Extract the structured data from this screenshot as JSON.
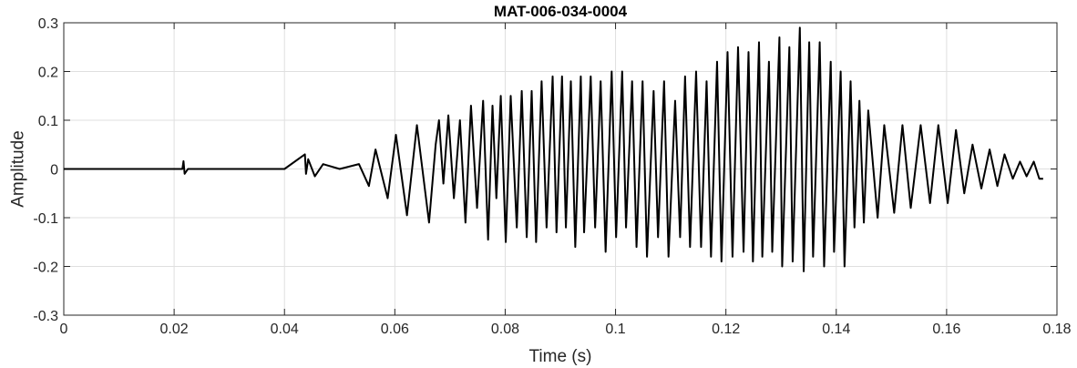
{
  "chart_data": {
    "type": "line",
    "title": "MAT-006-034-0004",
    "xlabel": "Time (s)",
    "ylabel": "Amplitude",
    "xlim": [
      0,
      0.18
    ],
    "ylim": [
      -0.3,
      0.3
    ],
    "grid": true,
    "x_ticks": [
      0,
      0.02,
      0.04,
      0.06,
      0.08,
      0.1,
      0.12,
      0.14,
      0.16,
      0.18
    ],
    "x_tick_labels": [
      "0",
      "0.02",
      "0.04",
      "0.06",
      "0.08",
      "0.1",
      "0.12",
      "0.14",
      "0.16",
      "0.18"
    ],
    "y_ticks": [
      -0.3,
      -0.2,
      -0.1,
      0,
      0.1,
      0.2,
      0.3
    ],
    "y_tick_labels": [
      "-0.3",
      "-0.2",
      "-0.1",
      "0",
      "0.1",
      "0.2",
      "0.3"
    ],
    "series": [
      {
        "color": "#000000",
        "x": [
          0,
          0.0215,
          0.0217,
          0.0219,
          0.0225,
          0.03,
          0.04,
          0.0437,
          0.0439,
          0.0443,
          0.0455,
          0.047,
          0.05,
          0.0535,
          0.0553,
          0.0565,
          0.0587,
          0.0602,
          0.0622,
          0.064,
          0.0662,
          0.0674,
          0.068,
          0.0688,
          0.0697,
          0.0707,
          0.0718,
          0.0728,
          0.0738,
          0.0749,
          0.076,
          0.0769,
          0.0777,
          0.0784,
          0.0792,
          0.0801,
          0.081,
          0.0821,
          0.083,
          0.0839,
          0.0848,
          0.0856,
          0.0866,
          0.0875,
          0.0886,
          0.0893,
          0.0903,
          0.091,
          0.0919,
          0.0927,
          0.0937,
          0.0943,
          0.0955,
          0.0963,
          0.0973,
          0.0982,
          0.0993,
          0.1001,
          0.1012,
          0.1019,
          0.103,
          0.1038,
          0.1049,
          0.1057,
          0.1069,
          0.1077,
          0.1088,
          0.1096,
          0.1108,
          0.1117,
          0.1126,
          0.1135,
          0.1146,
          0.1155,
          0.1165,
          0.1173,
          0.1184,
          0.1192,
          0.1203,
          0.1212,
          0.1222,
          0.1232,
          0.1241,
          0.1249,
          0.126,
          0.1266,
          0.1278,
          0.1284,
          0.1297,
          0.1302,
          0.1315,
          0.1321,
          0.1334,
          0.1341,
          0.1351,
          0.1358,
          0.137,
          0.1378,
          0.139,
          0.1396,
          0.1408,
          0.1415,
          0.1426,
          0.1433,
          0.1442,
          0.145,
          0.1458,
          0.1475,
          0.1487,
          0.1505,
          0.152,
          0.1535,
          0.1553,
          0.157,
          0.1585,
          0.1602,
          0.1617,
          0.1632,
          0.1647,
          0.1663,
          0.1678,
          0.1692,
          0.1705,
          0.172,
          0.1733,
          0.1745,
          0.1758,
          0.1768,
          0.1775
        ],
        "y": [
          0,
          0,
          0.016,
          -0.01,
          0,
          0,
          0,
          0.03,
          -0.01,
          0.02,
          -0.015,
          0.01,
          0,
          0.01,
          -0.035,
          0.04,
          -0.06,
          0.07,
          -0.095,
          0.09,
          -0.11,
          0.05,
          0.1,
          -0.03,
          0.11,
          -0.06,
          0.1,
          -0.11,
          0.13,
          -0.08,
          0.14,
          -0.145,
          0.13,
          -0.06,
          0.15,
          -0.15,
          0.15,
          -0.12,
          0.16,
          -0.14,
          0.16,
          -0.15,
          0.18,
          -0.12,
          0.19,
          -0.13,
          0.19,
          -0.12,
          0.18,
          -0.16,
          0.19,
          -0.13,
          0.19,
          -0.12,
          0.18,
          -0.17,
          0.2,
          -0.14,
          0.2,
          -0.12,
          0.18,
          -0.16,
          0.18,
          -0.18,
          0.16,
          -0.14,
          0.18,
          -0.18,
          0.14,
          -0.14,
          0.19,
          -0.16,
          0.2,
          -0.16,
          0.18,
          -0.18,
          0.22,
          -0.19,
          0.24,
          -0.18,
          0.25,
          -0.17,
          0.24,
          -0.19,
          0.26,
          -0.18,
          0.22,
          -0.17,
          0.27,
          -0.2,
          0.25,
          -0.19,
          0.29,
          -0.21,
          0.26,
          -0.18,
          0.26,
          -0.2,
          0.22,
          -0.17,
          0.2,
          -0.2,
          0.18,
          -0.12,
          0.14,
          -0.11,
          0.12,
          -0.1,
          0.09,
          -0.09,
          0.09,
          -0.08,
          0.09,
          -0.07,
          0.09,
          -0.07,
          0.08,
          -0.05,
          0.05,
          -0.04,
          0.04,
          -0.035,
          0.03,
          -0.02,
          0.015,
          -0.015,
          0.015,
          -0.02,
          -0.02
        ]
      }
    ]
  }
}
